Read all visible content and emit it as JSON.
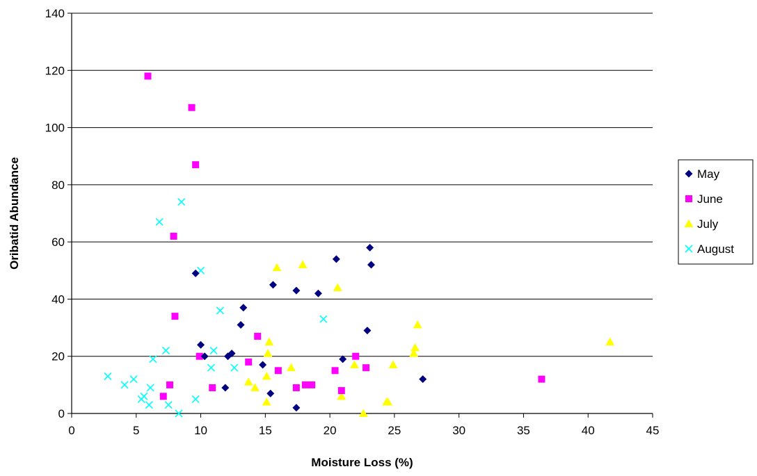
{
  "chart_data": {
    "type": "scatter",
    "title": "",
    "xlabel": "Moisture Loss (%)",
    "ylabel": "Oribatid Abundance",
    "xlim": [
      0,
      45
    ],
    "ylim": [
      0,
      140
    ],
    "x_ticks": [
      "0",
      "5",
      "10",
      "15",
      "20",
      "25",
      "30",
      "35",
      "40",
      "45"
    ],
    "y_ticks": [
      "0",
      "20",
      "40",
      "60",
      "80",
      "100",
      "120",
      "140"
    ],
    "grid": "horizontal",
    "legend_position": "right",
    "series": [
      {
        "name": "May",
        "marker": "diamond",
        "color": "#000080",
        "points": [
          [
            9.6,
            49
          ],
          [
            10.0,
            24
          ],
          [
            10.3,
            20
          ],
          [
            11.9,
            9
          ],
          [
            12.1,
            20
          ],
          [
            12.4,
            21
          ],
          [
            13.1,
            31
          ],
          [
            13.3,
            37
          ],
          [
            14.8,
            17
          ],
          [
            15.4,
            7
          ],
          [
            15.6,
            45
          ],
          [
            17.4,
            2
          ],
          [
            17.4,
            43
          ],
          [
            19.1,
            42
          ],
          [
            20.5,
            54
          ],
          [
            21.0,
            19
          ],
          [
            22.9,
            29
          ],
          [
            23.1,
            58
          ],
          [
            23.2,
            52
          ],
          [
            27.2,
            12
          ]
        ]
      },
      {
        "name": "June",
        "marker": "square",
        "color": "#ff00ff",
        "points": [
          [
            5.9,
            118
          ],
          [
            7.1,
            6
          ],
          [
            7.6,
            10
          ],
          [
            7.9,
            62
          ],
          [
            8.0,
            34
          ],
          [
            9.3,
            107
          ],
          [
            9.6,
            87
          ],
          [
            9.9,
            20
          ],
          [
            10.9,
            9
          ],
          [
            13.7,
            18
          ],
          [
            14.4,
            27
          ],
          [
            16.0,
            15
          ],
          [
            17.4,
            9
          ],
          [
            18.1,
            10
          ],
          [
            18.6,
            10
          ],
          [
            20.4,
            15
          ],
          [
            20.9,
            8
          ],
          [
            22.0,
            20
          ],
          [
            22.8,
            16
          ],
          [
            36.4,
            12
          ]
        ]
      },
      {
        "name": "July",
        "marker": "triangle",
        "color": "#ffff00",
        "points": [
          [
            13.7,
            11
          ],
          [
            14.2,
            9
          ],
          [
            15.1,
            4
          ],
          [
            15.1,
            13
          ],
          [
            15.2,
            21
          ],
          [
            15.3,
            25
          ],
          [
            15.9,
            51
          ],
          [
            17.0,
            16
          ],
          [
            17.9,
            52
          ],
          [
            20.6,
            44
          ],
          [
            20.9,
            6
          ],
          [
            21.9,
            17
          ],
          [
            22.6,
            0
          ],
          [
            24.4,
            4
          ],
          [
            24.5,
            4
          ],
          [
            24.9,
            17
          ],
          [
            26.5,
            21
          ],
          [
            26.6,
            23
          ],
          [
            26.8,
            31
          ],
          [
            41.7,
            25
          ]
        ]
      },
      {
        "name": "August",
        "marker": "x",
        "color": "#00ffff",
        "points": [
          [
            2.8,
            13
          ],
          [
            4.1,
            10
          ],
          [
            4.8,
            12
          ],
          [
            5.4,
            5
          ],
          [
            5.6,
            6
          ],
          [
            6.0,
            3
          ],
          [
            6.1,
            9
          ],
          [
            6.3,
            19
          ],
          [
            6.8,
            67
          ],
          [
            7.3,
            22
          ],
          [
            7.5,
            3
          ],
          [
            8.3,
            0
          ],
          [
            8.5,
            74
          ],
          [
            9.6,
            5
          ],
          [
            10.0,
            50
          ],
          [
            10.8,
            16
          ],
          [
            11.0,
            22
          ],
          [
            11.5,
            36
          ],
          [
            12.6,
            16
          ],
          [
            19.5,
            33
          ]
        ]
      }
    ]
  }
}
